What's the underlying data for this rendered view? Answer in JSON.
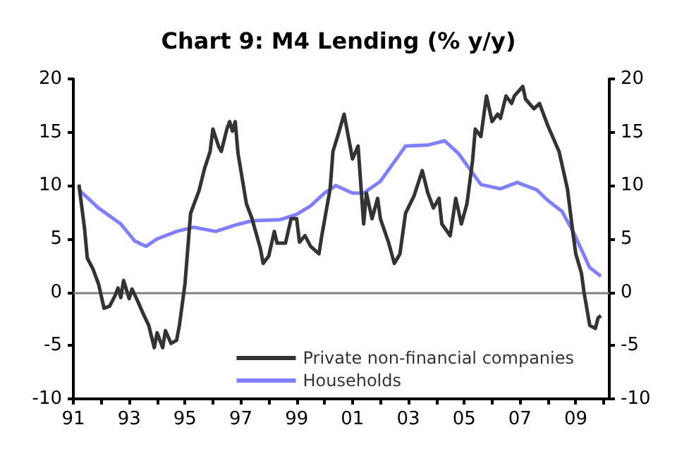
{
  "chart_data": {
    "type": "line",
    "title": "Chart 9: M4 Lending (% y/y)",
    "xlim": [
      1991,
      2010.2
    ],
    "xticks": [
      {
        "value": 1991,
        "label": "91"
      },
      {
        "value": 1992,
        "label": null
      },
      {
        "value": 1993,
        "label": "93"
      },
      {
        "value": 1994,
        "label": null
      },
      {
        "value": 1995,
        "label": "95"
      },
      {
        "value": 1996,
        "label": null
      },
      {
        "value": 1997,
        "label": "97"
      },
      {
        "value": 1998,
        "label": null
      },
      {
        "value": 1999,
        "label": "99"
      },
      {
        "value": 2000,
        "label": null
      },
      {
        "value": 2001,
        "label": "01"
      },
      {
        "value": 2002,
        "label": null
      },
      {
        "value": 2003,
        "label": "03"
      },
      {
        "value": 2004,
        "label": null
      },
      {
        "value": 2005,
        "label": "05"
      },
      {
        "value": 2006,
        "label": null
      },
      {
        "value": 2007,
        "label": "07"
      },
      {
        "value": 2008,
        "label": null
      },
      {
        "value": 2009,
        "label": "09"
      },
      {
        "value": 2010,
        "label": null
      }
    ],
    "ylim": [
      -10,
      20
    ],
    "yticks": [
      -10,
      -5,
      0,
      5,
      10,
      15,
      20
    ],
    "y2lim": [
      -10,
      20
    ],
    "y2ticks": [
      -10,
      -5,
      0,
      5,
      10,
      15,
      20
    ],
    "grid": false,
    "legend": "bottom right",
    "marker": "none",
    "line_style": "solid",
    "ref_lines": [
      {
        "axis": "y",
        "value": 0,
        "color": "#808080"
      }
    ],
    "series": [
      {
        "name": "Private non-financial companies",
        "color": "#333333",
        "x": [
          1991.2,
          1991.4,
          1991.5,
          1991.7,
          1991.9,
          1992.1,
          1992.3,
          1992.5,
          1992.6,
          1992.7,
          1992.8,
          1993.0,
          1993.1,
          1993.3,
          1993.5,
          1993.7,
          1993.9,
          1994.0,
          1994.2,
          1994.3,
          1994.5,
          1994.7,
          1994.8,
          1995.0,
          1995.2,
          1995.5,
          1995.7,
          1995.9,
          1996.0,
          1996.2,
          1996.3,
          1996.5,
          1996.6,
          1996.7,
          1996.8,
          1996.9,
          1997.2,
          1997.4,
          1997.7,
          1997.8,
          1998.0,
          1998.2,
          1998.3,
          1998.6,
          1998.8,
          1999.0,
          1999.1,
          1999.3,
          1999.5,
          1999.8,
          1999.9,
          2000.2,
          2000.3,
          2000.5,
          2000.7,
          2000.9,
          2001.0,
          2001.2,
          2001.4,
          2001.5,
          2001.7,
          2001.9,
          2002.0,
          2002.3,
          2002.5,
          2002.7,
          2002.9,
          2003.2,
          2003.5,
          2003.7,
          2003.9,
          2004.1,
          2004.2,
          2004.5,
          2004.7,
          2004.9,
          2005.1,
          2005.3,
          2005.4,
          2005.6,
          2005.8,
          2006.0,
          2006.2,
          2006.3,
          2006.5,
          2006.7,
          2006.8,
          2007.1,
          2007.2,
          2007.5,
          2007.7,
          2008.0,
          2008.2,
          2008.4,
          2008.7,
          2008.9,
          2009.0,
          2009.2,
          2009.3,
          2009.5,
          2009.7,
          2009.8,
          2009.9
        ],
        "values": [
          10.1,
          6.0,
          3.2,
          2.2,
          0.8,
          -1.5,
          -1.3,
          -0.3,
          0.4,
          -0.5,
          1.1,
          -0.6,
          0.3,
          -0.8,
          -2.0,
          -3.1,
          -5.2,
          -3.8,
          -5.2,
          -3.6,
          -4.8,
          -4.5,
          -3.1,
          0.8,
          7.4,
          9.5,
          11.6,
          13.2,
          15.3,
          13.7,
          13.2,
          15.3,
          16.0,
          15.1,
          16.0,
          13.0,
          8.3,
          6.9,
          4.1,
          2.7,
          3.4,
          5.7,
          4.6,
          4.6,
          6.9,
          6.9,
          4.7,
          5.3,
          4.3,
          3.6,
          5.3,
          9.7,
          13.2,
          14.9,
          16.7,
          13.9,
          12.5,
          13.7,
          6.4,
          9.3,
          6.9,
          8.8,
          6.9,
          4.6,
          2.7,
          3.6,
          7.4,
          9.0,
          11.4,
          9.3,
          7.9,
          8.8,
          6.4,
          5.3,
          8.8,
          6.4,
          8.3,
          12.3,
          15.3,
          14.6,
          18.4,
          16.0,
          16.7,
          16.3,
          18.4,
          17.7,
          18.4,
          19.3,
          18.1,
          17.2,
          17.7,
          15.6,
          14.4,
          13.2,
          9.7,
          5.5,
          3.6,
          1.8,
          -0.1,
          -3.1,
          -3.4,
          -2.4,
          -2.2
        ]
      },
      {
        "name": "Households",
        "color": "#8080ff",
        "x": [
          1991.2,
          1991.9,
          1992.7,
          1993.2,
          1993.6,
          1994.0,
          1994.7,
          1995.3,
          1996.1,
          1996.8,
          1997.4,
          1998.4,
          1999.0,
          1999.5,
          2000.0,
          2000.4,
          2001.0,
          2001.4,
          2002.0,
          2002.9,
          2003.7,
          2004.3,
          2004.8,
          2005.6,
          2006.3,
          2006.9,
          2007.6,
          2008.0,
          2008.5,
          2008.9,
          2009.5,
          2009.9
        ],
        "values": [
          9.6,
          7.9,
          6.4,
          4.8,
          4.3,
          5.0,
          5.7,
          6.1,
          5.7,
          6.3,
          6.7,
          6.8,
          7.3,
          8.1,
          9.3,
          10.0,
          9.3,
          9.3,
          10.4,
          13.7,
          13.8,
          14.2,
          13.0,
          10.1,
          9.7,
          10.3,
          9.6,
          8.6,
          7.6,
          5.7,
          2.3,
          1.5
        ]
      }
    ]
  }
}
